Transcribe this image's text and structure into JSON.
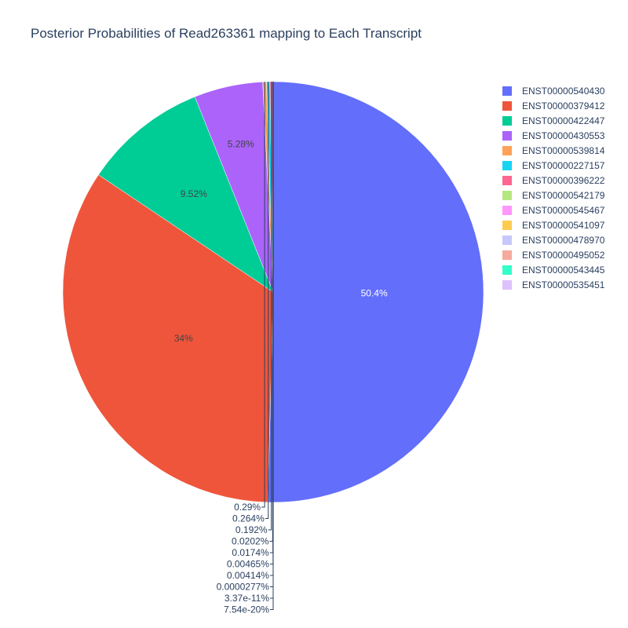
{
  "chart_data": {
    "type": "pie",
    "title": "Posterior Probabilities of Read263361 mapping to Each Transcript",
    "slices": [
      {
        "label": "ENST00000540430",
        "value": 50.4,
        "display": "50.4%",
        "color": "#636efa"
      },
      {
        "label": "ENST00000379412",
        "value": 34.0,
        "display": "34%",
        "color": "#EF553B"
      },
      {
        "label": "ENST00000422447",
        "value": 9.52,
        "display": "9.52%",
        "color": "#00cc96"
      },
      {
        "label": "ENST00000430553",
        "value": 5.28,
        "display": "5.28%",
        "color": "#ab63fa"
      },
      {
        "label": "ENST00000539814",
        "value": 0.29,
        "display": "0.29%",
        "color": "#FFA15A"
      },
      {
        "label": "ENST00000227157",
        "value": 0.264,
        "display": "0.264%",
        "color": "#19d3f3"
      },
      {
        "label": "ENST00000396222",
        "value": 0.192,
        "display": "0.192%",
        "color": "#FF6692"
      },
      {
        "label": "ENST00000542179",
        "value": 0.0202,
        "display": "0.0202%",
        "color": "#B6E880"
      },
      {
        "label": "ENST00000545467",
        "value": 0.0174,
        "display": "0.0174%",
        "color": "#FF97FF"
      },
      {
        "label": "ENST00000541097",
        "value": 0.00465,
        "display": "0.00465%",
        "color": "#FECB52"
      },
      {
        "label": "ENST00000478970",
        "value": 0.00414,
        "display": "0.00414%",
        "color": "#c6c8fb"
      },
      {
        "label": "ENST00000495052",
        "value": 2.77e-05,
        "display": "0.0000277%",
        "color": "#f5aa9d"
      },
      {
        "label": "ENST00000543445",
        "value": 3.37e-11,
        "display": "3.37e-11%",
        "color": "#33ffc8"
      },
      {
        "label": "ENST00000535451",
        "value": 7.54e-20,
        "display": "7.54e-20%",
        "color": "#ddc1fd"
      }
    ],
    "legend_position": "right",
    "direction": "clockwise",
    "start_angle": "top"
  }
}
